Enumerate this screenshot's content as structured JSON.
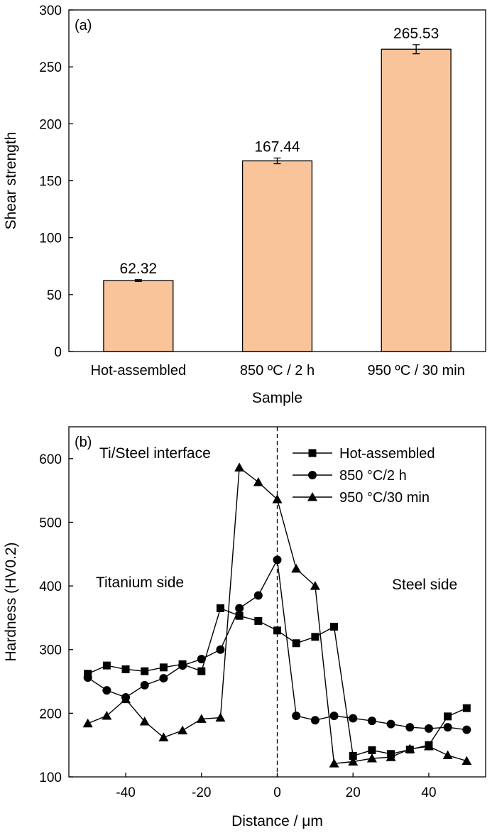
{
  "chart_data": [
    {
      "type": "bar",
      "panel_label": "(a)",
      "xlabel": "Sample",
      "ylabel": "Shear strength",
      "ylim": [
        0,
        300
      ],
      "yticks": [
        0,
        50,
        100,
        150,
        200,
        250,
        300
      ],
      "categories": [
        "Hot-assembled",
        "850 ºC / 2 h",
        "950 ºC / 30 min"
      ],
      "values": [
        62.32,
        167.44,
        265.53
      ],
      "value_labels": [
        "62.32",
        "167.44",
        "265.53"
      ],
      "errors": [
        0.8,
        2.5,
        4
      ],
      "bar_color": "#f9c49a",
      "grid": false
    },
    {
      "type": "line",
      "panel_label": "(b)",
      "xlabel": "Distance / μm",
      "ylabel": "Hardness (HV0.2)",
      "xlim": [
        -55,
        55
      ],
      "ylim": [
        100,
        650
      ],
      "xticks": [
        -40,
        -20,
        0,
        20,
        40
      ],
      "yticks": [
        100,
        200,
        300,
        400,
        500,
        600
      ],
      "grid": false,
      "legend_position": "top-right",
      "annotations": {
        "interface": "Ti/Steel interface",
        "left_side": "Titanium side",
        "right_side": "Steel side"
      },
      "vline_x": 0,
      "series": [
        {
          "name": "Hot-assembled",
          "marker": "square",
          "x": [
            -50,
            -45,
            -40,
            -35,
            -30,
            -25,
            -20,
            -15,
            -10,
            -5,
            0,
            5,
            10,
            15,
            20,
            25,
            30,
            35,
            40,
            45,
            50
          ],
          "y": [
            262,
            275,
            269,
            266,
            272,
            277,
            266,
            365,
            353,
            345,
            330,
            310,
            320,
            336,
            133,
            142,
            136,
            143,
            150,
            195,
            208
          ]
        },
        {
          "name": "850 °C/2 h",
          "marker": "circle",
          "x": [
            -50,
            -45,
            -40,
            -35,
            -30,
            -25,
            -20,
            -15,
            -10,
            -5,
            0,
            5,
            10,
            15,
            20,
            25,
            30,
            35,
            40,
            45,
            50
          ],
          "y": [
            256,
            236,
            225,
            244,
            255,
            275,
            285,
            300,
            365,
            385,
            441,
            196,
            189,
            196,
            192,
            188,
            183,
            178,
            176,
            178,
            174
          ]
        },
        {
          "name": "950 °C/30 min",
          "marker": "triangle",
          "x": [
            -50,
            -45,
            -40,
            -35,
            -30,
            -25,
            -20,
            -15,
            -10,
            -5,
            0,
            5,
            10,
            15,
            20,
            25,
            30,
            35,
            40,
            45,
            50
          ],
          "y": [
            184,
            196,
            222,
            187,
            162,
            173,
            191,
            193,
            586,
            563,
            536,
            427,
            400,
            121,
            124,
            129,
            131,
            144,
            148,
            134,
            125
          ]
        }
      ]
    }
  ]
}
